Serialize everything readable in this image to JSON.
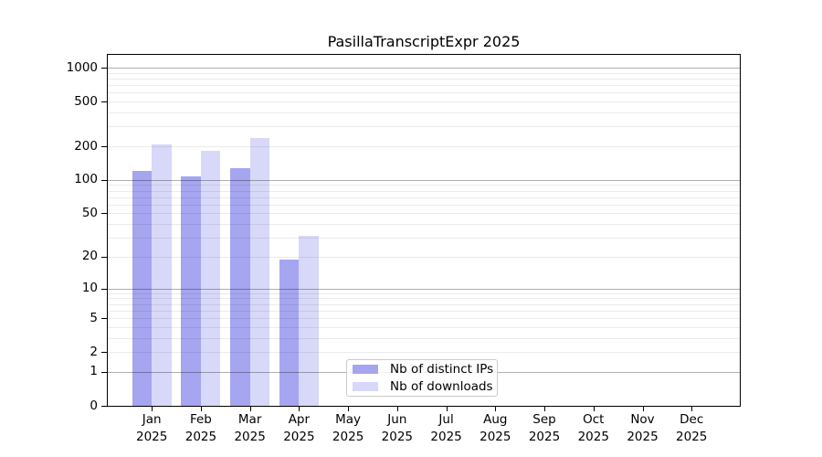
{
  "chart_data": {
    "type": "bar",
    "title": "PasillaTranscriptExpr 2025",
    "categories": [
      "Jan 2025",
      "Feb 2025",
      "Mar 2025",
      "Apr 2025",
      "May 2025",
      "Jun 2025",
      "Jul 2025",
      "Aug 2025",
      "Sep 2025",
      "Oct 2025",
      "Nov 2025",
      "Dec 2025"
    ],
    "series": [
      {
        "name": "Nb of distinct IPs",
        "color": "#a5a5f0",
        "values": [
          120,
          108,
          128,
          19,
          null,
          null,
          null,
          null,
          null,
          null,
          null,
          null
        ]
      },
      {
        "name": "Nb of downloads",
        "color": "#d8d8f8",
        "values": [
          207,
          182,
          237,
          31,
          null,
          null,
          null,
          null,
          null,
          null,
          null,
          null
        ]
      }
    ],
    "y_axis": {
      "scale": "log1p",
      "tick_values": [
        0,
        1,
        2,
        5,
        10,
        20,
        50,
        100,
        200,
        500,
        1000
      ],
      "major_gridline_values": [
        1,
        10,
        100,
        1000
      ],
      "ylim": [
        0,
        1325
      ]
    },
    "grid": true,
    "legend_position": "inside plot, lower center-left"
  },
  "colors": {
    "background": "#ffffff",
    "axis": "#000000",
    "major_grid": "rgba(0,0,0,0.31)",
    "minor_grid": "rgba(0,0,0,0.08)",
    "text": "#000000"
  }
}
